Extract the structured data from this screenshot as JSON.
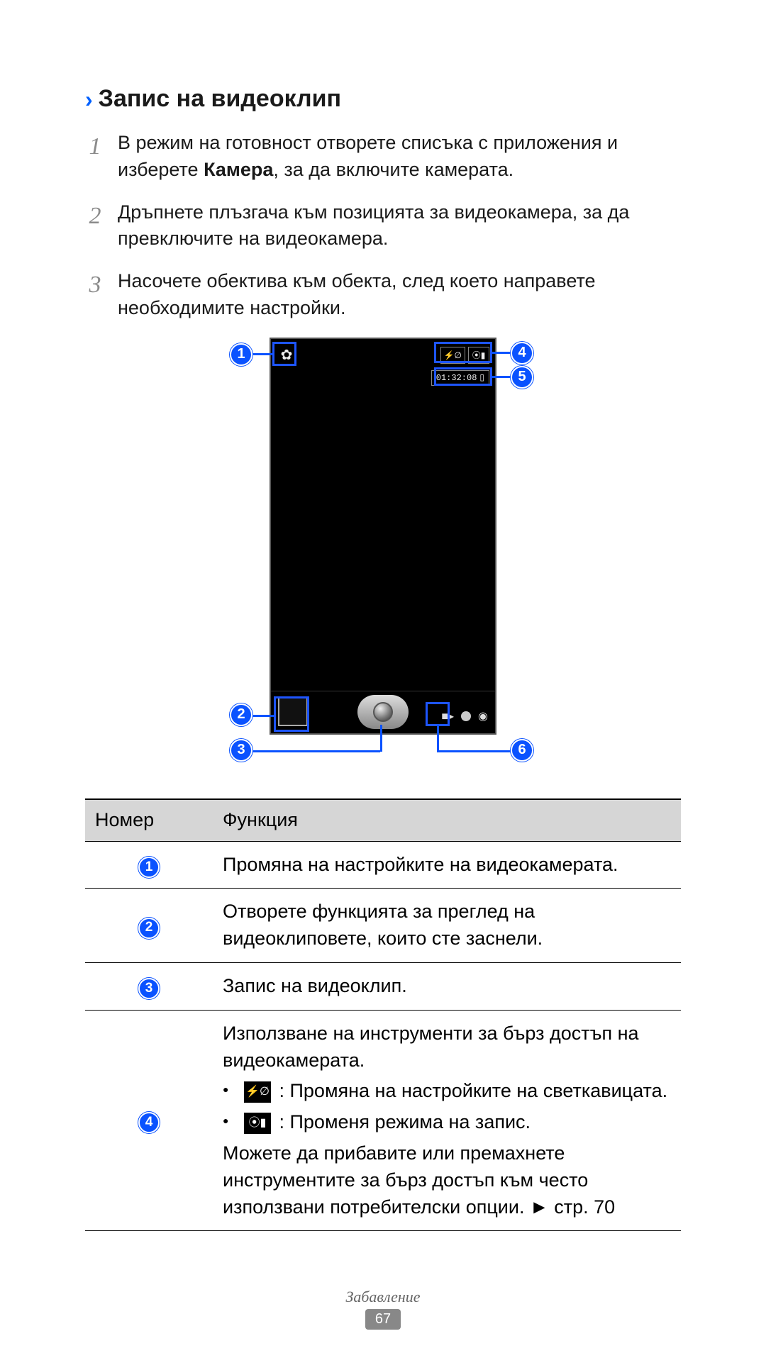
{
  "title": {
    "chevron": "›",
    "text": "Запис на видеоклип"
  },
  "steps": [
    {
      "num": "1",
      "text_pre": "В режим на готовност отворете списъка с приложения и изберете ",
      "bold": "Камера",
      "text_post": ", за да включите камерата."
    },
    {
      "num": "2",
      "text_pre": "Дръпнете плъзгача към позицията за видеокамера, за да превключите на видеокамера.",
      "bold": "",
      "text_post": ""
    },
    {
      "num": "3",
      "text_pre": "Насочете обектива към обекта, след което направете необходимите настройки.",
      "bold": "",
      "text_post": ""
    }
  ],
  "phone": {
    "settings_icon": "✿",
    "flash_off_icon": "⚡∅",
    "record_mode_icon": "⦿▮",
    "timecode": "01:32:08",
    "storage_icon": "▯",
    "video_icon": "■▸",
    "camera_icon": "◉"
  },
  "callouts": {
    "1": "1",
    "2": "2",
    "3": "3",
    "4": "4",
    "5": "5",
    "6": "6"
  },
  "table": {
    "header_num": "Номер",
    "header_func": "Функция",
    "rows": [
      {
        "n": "1",
        "func_plain": "Промяна на настройките на видеокамерата."
      },
      {
        "n": "2",
        "func_plain": "Отворете функцията за преглед на видеоклиповете, които сте заснели."
      },
      {
        "n": "3",
        "func_plain": "Запис на видеоклип."
      },
      {
        "n": "4",
        "intro": "Използване на инструменти за бърз достъп на видеокамерата.",
        "b1_after": " : Промяна на настройките на светкавицата.",
        "b2_after": " : Променя режима на запис.",
        "outro": "Можете да прибавите или премахнете инструментите за бърз достъп към често използвани потребителски опции. ► стр. 70"
      }
    ],
    "icons": {
      "flash": "⚡∅",
      "mode": "⦿▮"
    }
  },
  "footer": {
    "section": "Забавление",
    "page": "67"
  },
  "colors": {
    "accent": "#0a52ff",
    "header_bg": "#d6d6d6"
  }
}
